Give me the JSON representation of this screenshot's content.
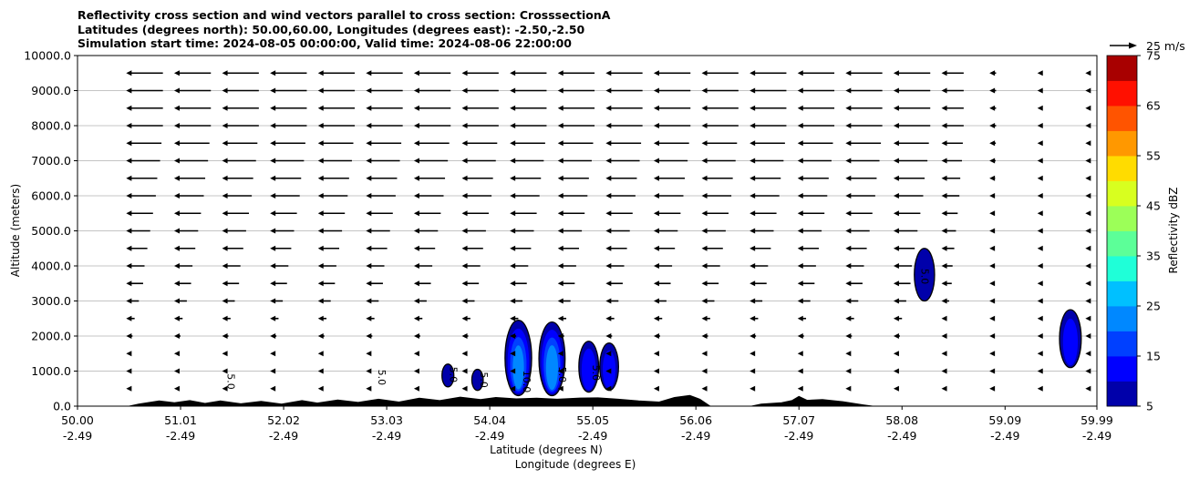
{
  "chart_data": {
    "type": "contour",
    "title_lines": [
      "Reflectivity cross section and wind vectors parallel to cross section: CrosssectionA",
      "Latitudes (degrees north): 50.00,60.00, Longitudes (degrees east): -2.50,-2.50",
      "Simulation start time: 2024-08-05 00:00:00, Valid time: 2024-08-06 22:00:00"
    ],
    "ylabel": "Altitude (meters)",
    "xlabel_lines": [
      "Latitude (degrees N)",
      "Longitude (degrees E)"
    ],
    "ylim": [
      0,
      10000
    ],
    "xlim": [
      50.0,
      59.99
    ],
    "yticks": [
      "0.0",
      "1000.0",
      "2000.0",
      "3000.0",
      "4000.0",
      "5000.0",
      "6000.0",
      "7000.0",
      "8000.0",
      "9000.0",
      "10000.0"
    ],
    "ytick_values": [
      0,
      1000,
      2000,
      3000,
      4000,
      5000,
      6000,
      7000,
      8000,
      9000,
      10000
    ],
    "xticks": [
      {
        "lat": "50.00",
        "lon": "-2.49",
        "value": 50.0
      },
      {
        "lat": "51.01",
        "lon": "-2.49",
        "value": 51.01
      },
      {
        "lat": "52.02",
        "lon": "-2.49",
        "value": 52.02
      },
      {
        "lat": "53.03",
        "lon": "-2.49",
        "value": 53.03
      },
      {
        "lat": "54.04",
        "lon": "-2.49",
        "value": 54.04
      },
      {
        "lat": "55.05",
        "lon": "-2.49",
        "value": 55.05
      },
      {
        "lat": "56.06",
        "lon": "-2.49",
        "value": 56.06
      },
      {
        "lat": "57.07",
        "lon": "-2.49",
        "value": 57.07
      },
      {
        "lat": "58.08",
        "lon": "-2.49",
        "value": 58.08
      },
      {
        "lat": "59.09",
        "lon": "-2.49",
        "value": 59.09
      },
      {
        "lat": "59.99",
        "lon": "-2.49",
        "value": 59.99
      }
    ],
    "grid": "horizontal",
    "colorbar": {
      "label": "Reflectivity dBZ",
      "levels": [
        5,
        10,
        15,
        20,
        25,
        30,
        35,
        40,
        45,
        50,
        55,
        60,
        65,
        70,
        75
      ],
      "tick_labels": [
        "5",
        "15",
        "25",
        "35",
        "45",
        "55",
        "65",
        "75"
      ],
      "colors": [
        "#0000aa",
        "#0000ff",
        "#0040ff",
        "#0088ff",
        "#00c0ff",
        "#1fffd8",
        "#5cff98",
        "#9cff58",
        "#d8ff1f",
        "#ffdc00",
        "#ff9800",
        "#ff5400",
        "#ff1000",
        "#a80000"
      ]
    },
    "quiver_key": "25 m/s",
    "contour_labels": [
      "5.0",
      "5.0",
      "5.0",
      "5.0",
      "10.0",
      "5.0",
      "5.0",
      "5.0"
    ],
    "cells": [
      {
        "lat": 51.45,
        "alt_base": 350,
        "alt_top": 1050,
        "dbz": 8
      },
      {
        "lat": 52.93,
        "alt_base": 600,
        "alt_top": 1050,
        "dbz": 8
      },
      {
        "lat": 53.63,
        "alt_base": 550,
        "alt_top": 1200,
        "dbz": 12
      },
      {
        "lat": 53.92,
        "alt_base": 450,
        "alt_top": 1050,
        "dbz": 12
      },
      {
        "lat": 54.32,
        "alt_base": 300,
        "alt_top": 2450,
        "dbz": 26
      },
      {
        "lat": 54.65,
        "alt_base": 300,
        "alt_top": 2400,
        "dbz": 28
      },
      {
        "lat": 55.01,
        "alt_base": 400,
        "alt_top": 1850,
        "dbz": 18
      },
      {
        "lat": 55.21,
        "alt_base": 450,
        "alt_top": 1800,
        "dbz": 16
      },
      {
        "lat": 58.3,
        "alt_base": 3000,
        "alt_top": 4500,
        "dbz": 14
      },
      {
        "lat": 59.73,
        "alt_base": 1100,
        "alt_top": 2750,
        "dbz": 16
      }
    ],
    "terrain": [
      [
        50.0,
        0
      ],
      [
        50.5,
        0
      ],
      [
        50.6,
        60
      ],
      [
        50.8,
        150
      ],
      [
        50.95,
        100
      ],
      [
        51.1,
        160
      ],
      [
        51.25,
        80
      ],
      [
        51.4,
        150
      ],
      [
        51.6,
        70
      ],
      [
        51.8,
        140
      ],
      [
        52.0,
        60
      ],
      [
        52.2,
        160
      ],
      [
        52.35,
        90
      ],
      [
        52.55,
        180
      ],
      [
        52.75,
        110
      ],
      [
        52.95,
        200
      ],
      [
        53.15,
        120
      ],
      [
        53.35,
        230
      ],
      [
        53.55,
        160
      ],
      [
        53.75,
        260
      ],
      [
        53.95,
        190
      ],
      [
        54.1,
        250
      ],
      [
        54.3,
        210
      ],
      [
        54.5,
        230
      ],
      [
        54.7,
        200
      ],
      [
        54.9,
        230
      ],
      [
        55.1,
        240
      ],
      [
        55.3,
        200
      ],
      [
        55.5,
        150
      ],
      [
        55.7,
        120
      ],
      [
        55.85,
        250
      ],
      [
        56.0,
        310
      ],
      [
        56.1,
        200
      ],
      [
        56.2,
        0
      ],
      [
        56.6,
        0
      ],
      [
        56.7,
        60
      ],
      [
        56.9,
        100
      ],
      [
        57.0,
        160
      ],
      [
        57.07,
        280
      ],
      [
        57.15,
        170
      ],
      [
        57.3,
        190
      ],
      [
        57.5,
        130
      ],
      [
        57.7,
        40
      ],
      [
        57.8,
        0
      ],
      [
        59.99,
        0
      ]
    ],
    "wind_rows": [
      {
        "alt": 500,
        "u": -1.5
      },
      {
        "alt": 1000,
        "u": -2.5
      },
      {
        "alt": 1500,
        "u": -3.5
      },
      {
        "alt": 2000,
        "u": -4.5
      },
      {
        "alt": 2500,
        "u": -6
      },
      {
        "alt": 3000,
        "u": -9
      },
      {
        "alt": 3500,
        "u": -12
      },
      {
        "alt": 4000,
        "u": -13
      },
      {
        "alt": 4500,
        "u": -15
      },
      {
        "alt": 5000,
        "u": -17
      },
      {
        "alt": 5500,
        "u": -19
      },
      {
        "alt": 6000,
        "u": -21
      },
      {
        "alt": 6500,
        "u": -22
      },
      {
        "alt": 7000,
        "u": -24
      },
      {
        "alt": 7500,
        "u": -25
      },
      {
        "alt": 8000,
        "u": -26
      },
      {
        "alt": 8500,
        "u": -26
      },
      {
        "alt": 9000,
        "u": -26
      },
      {
        "alt": 9500,
        "u": -26
      }
    ]
  }
}
